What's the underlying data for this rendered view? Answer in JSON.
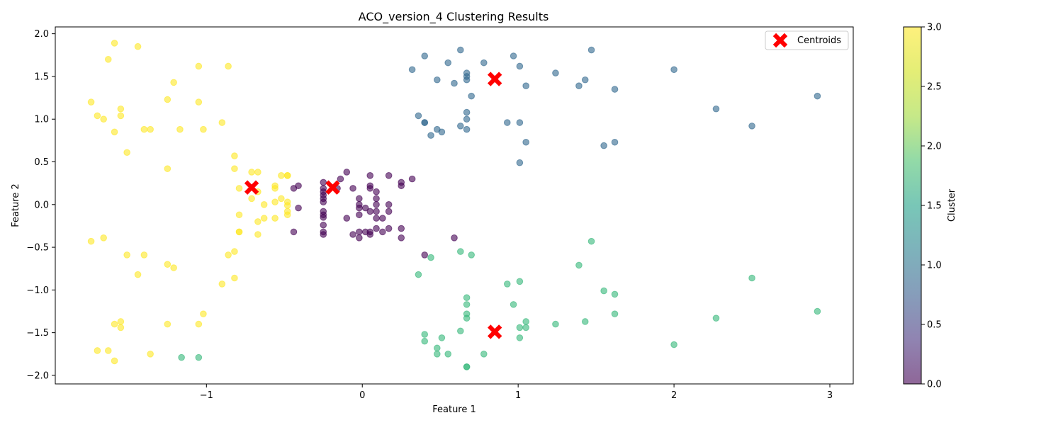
{
  "chart_data": {
    "type": "scatter",
    "title": "ACO_version_4 Clustering Results",
    "xlabel": "Feature 1",
    "ylabel": "Feature 2",
    "xlim": [
      -1.97,
      3.15
    ],
    "ylim": [
      -2.1,
      2.08
    ],
    "xticks": [
      -1,
      0,
      1,
      2,
      3
    ],
    "yticks": [
      -2.0,
      -1.5,
      -1.0,
      -0.5,
      0.0,
      0.5,
      1.0,
      1.5,
      2.0
    ],
    "grid": false,
    "legend": {
      "label": "Centroids",
      "location": "top-right"
    },
    "colorbar": {
      "label": "Cluster",
      "range": [
        0.0,
        3.0
      ],
      "ticks": [
        0.0,
        0.5,
        1.0,
        1.5,
        2.0,
        2.5,
        3.0
      ],
      "colormap": "viridis"
    },
    "centroid_color": "#ff0000",
    "series": [
      {
        "cluster": 0,
        "color": "#440154",
        "points": [
          [
            -0.25,
            0.26
          ],
          [
            -0.25,
            0.19
          ],
          [
            -0.25,
            0.15
          ],
          [
            -0.25,
            0.11
          ],
          [
            -0.25,
            0.07
          ],
          [
            -0.25,
            0.03
          ],
          [
            -0.25,
            -0.08
          ],
          [
            -0.25,
            -0.12
          ],
          [
            -0.25,
            -0.15
          ],
          [
            -0.25,
            -0.24
          ],
          [
            -0.25,
            -0.32
          ],
          [
            -0.25,
            -0.35
          ],
          [
            -0.1,
            0.38
          ],
          [
            -0.14,
            0.3
          ],
          [
            -0.16,
            0.19
          ],
          [
            -0.06,
            0.19
          ],
          [
            -0.41,
            0.22
          ],
          [
            -0.44,
            0.19
          ],
          [
            -0.41,
            -0.04
          ],
          [
            -0.44,
            -0.32
          ],
          [
            -0.1,
            -0.16
          ],
          [
            -0.06,
            -0.35
          ],
          [
            -0.02,
            -0.39
          ],
          [
            -0.02,
            -0.32
          ],
          [
            0.02,
            -0.32
          ],
          [
            -0.02,
            0.07
          ],
          [
            -0.02,
            0.0
          ],
          [
            -0.02,
            -0.04
          ],
          [
            -0.02,
            -0.12
          ],
          [
            0.02,
            -0.04
          ],
          [
            0.05,
            0.34
          ],
          [
            0.05,
            0.22
          ],
          [
            0.05,
            0.19
          ],
          [
            0.05,
            -0.08
          ],
          [
            0.05,
            -0.32
          ],
          [
            0.05,
            -0.35
          ],
          [
            0.09,
            0.15
          ],
          [
            0.09,
            0.07
          ],
          [
            0.09,
            0.0
          ],
          [
            0.09,
            -0.08
          ],
          [
            0.09,
            -0.16
          ],
          [
            0.09,
            -0.28
          ],
          [
            0.13,
            -0.16
          ],
          [
            0.13,
            -0.32
          ],
          [
            0.17,
            0.34
          ],
          [
            0.17,
            0.0
          ],
          [
            0.17,
            -0.08
          ],
          [
            0.17,
            -0.28
          ],
          [
            0.25,
            0.26
          ],
          [
            0.25,
            0.22
          ],
          [
            0.25,
            -0.28
          ],
          [
            0.25,
            -0.39
          ],
          [
            0.32,
            0.3
          ],
          [
            0.59,
            -0.39
          ],
          [
            0.4,
            -0.59
          ]
        ]
      },
      {
        "cluster": 1,
        "color": "#31688e",
        "points": [
          [
            0.32,
            1.58
          ],
          [
            0.4,
            1.74
          ],
          [
            0.48,
            1.46
          ],
          [
            0.55,
            1.66
          ],
          [
            0.59,
            1.42
          ],
          [
            0.63,
            1.81
          ],
          [
            0.67,
            1.54
          ],
          [
            0.67,
            1.5
          ],
          [
            0.67,
            1.46
          ],
          [
            0.7,
            1.27
          ],
          [
            0.78,
            1.66
          ],
          [
            0.97,
            1.74
          ],
          [
            1.01,
            1.62
          ],
          [
            1.05,
            1.39
          ],
          [
            1.24,
            1.54
          ],
          [
            1.39,
            1.39
          ],
          [
            1.43,
            1.46
          ],
          [
            1.47,
            1.81
          ],
          [
            1.62,
            1.35
          ],
          [
            2.0,
            1.58
          ],
          [
            2.92,
            1.27
          ],
          [
            2.27,
            1.12
          ],
          [
            2.5,
            0.92
          ],
          [
            0.36,
            1.04
          ],
          [
            0.4,
            0.96
          ],
          [
            0.4,
            0.96
          ],
          [
            0.44,
            0.81
          ],
          [
            0.48,
            0.88
          ],
          [
            0.51,
            0.85
          ],
          [
            0.63,
            0.92
          ],
          [
            0.67,
            0.88
          ],
          [
            0.67,
            1.0
          ],
          [
            0.67,
            1.08
          ],
          [
            0.93,
            0.96
          ],
          [
            1.01,
            0.96
          ],
          [
            1.05,
            0.73
          ],
          [
            1.01,
            0.49
          ],
          [
            1.55,
            0.69
          ],
          [
            1.62,
            0.73
          ]
        ]
      },
      {
        "cluster": 2,
        "color": "#35b779",
        "points": [
          [
            0.36,
            -0.82
          ],
          [
            0.44,
            -0.62
          ],
          [
            0.63,
            -0.55
          ],
          [
            0.7,
            -0.59
          ],
          [
            0.4,
            -1.52
          ],
          [
            0.4,
            -1.6
          ],
          [
            0.48,
            -1.68
          ],
          [
            0.48,
            -1.75
          ],
          [
            0.51,
            -1.56
          ],
          [
            0.55,
            -1.75
          ],
          [
            0.63,
            -1.48
          ],
          [
            0.67,
            -1.09
          ],
          [
            0.67,
            -1.17
          ],
          [
            0.67,
            -1.28
          ],
          [
            0.67,
            -1.33
          ],
          [
            0.67,
            -1.9
          ],
          [
            0.67,
            -1.9
          ],
          [
            0.78,
            -1.75
          ],
          [
            0.93,
            -0.93
          ],
          [
            0.97,
            -1.17
          ],
          [
            1.01,
            -0.9
          ],
          [
            1.01,
            -1.44
          ],
          [
            1.01,
            -1.56
          ],
          [
            1.05,
            -1.37
          ],
          [
            1.05,
            -1.44
          ],
          [
            1.24,
            -1.4
          ],
          [
            1.39,
            -0.71
          ],
          [
            1.43,
            -1.37
          ],
          [
            1.47,
            -0.43
          ],
          [
            1.55,
            -1.01
          ],
          [
            1.62,
            -1.05
          ],
          [
            1.62,
            -1.28
          ],
          [
            2.0,
            -1.64
          ],
          [
            2.27,
            -1.33
          ],
          [
            2.5,
            -0.86
          ],
          [
            2.92,
            -1.25
          ],
          [
            -1.16,
            -1.79
          ],
          [
            -1.05,
            -1.79
          ]
        ]
      },
      {
        "cluster": 3,
        "color": "#fde725",
        "points": [
          [
            -1.59,
            1.89
          ],
          [
            -1.44,
            1.85
          ],
          [
            -1.63,
            1.7
          ],
          [
            -1.05,
            1.62
          ],
          [
            -0.86,
            1.62
          ],
          [
            -1.21,
            1.43
          ],
          [
            -1.25,
            1.23
          ],
          [
            -1.74,
            1.2
          ],
          [
            -1.05,
            1.2
          ],
          [
            -1.55,
            1.12
          ],
          [
            -1.55,
            1.04
          ],
          [
            -1.7,
            1.04
          ],
          [
            -1.66,
            1.0
          ],
          [
            -0.9,
            0.96
          ],
          [
            -1.4,
            0.88
          ],
          [
            -1.36,
            0.88
          ],
          [
            -1.17,
            0.88
          ],
          [
            -1.02,
            0.88
          ],
          [
            -1.59,
            0.85
          ],
          [
            -1.51,
            0.61
          ],
          [
            -0.82,
            0.57
          ],
          [
            -0.82,
            0.42
          ],
          [
            -1.25,
            0.42
          ],
          [
            -0.71,
            0.38
          ],
          [
            -0.67,
            0.38
          ],
          [
            -0.52,
            0.34
          ],
          [
            -0.48,
            0.34
          ],
          [
            -0.48,
            0.34
          ],
          [
            -0.56,
            0.22
          ],
          [
            -0.56,
            0.19
          ],
          [
            -0.79,
            0.19
          ],
          [
            -0.67,
            0.15
          ],
          [
            -0.71,
            0.07
          ],
          [
            -0.52,
            0.07
          ],
          [
            -0.56,
            0.03
          ],
          [
            -0.48,
            0.03
          ],
          [
            -0.63,
            0.0
          ],
          [
            -0.48,
            -0.01
          ],
          [
            -0.48,
            -0.08
          ],
          [
            -0.48,
            -0.12
          ],
          [
            -0.79,
            -0.12
          ],
          [
            -0.63,
            -0.16
          ],
          [
            -0.56,
            -0.16
          ],
          [
            -0.67,
            -0.2
          ],
          [
            -0.79,
            -0.32
          ],
          [
            -0.79,
            -0.32
          ],
          [
            -0.67,
            -0.35
          ],
          [
            -0.82,
            -0.55
          ],
          [
            -0.86,
            -0.59
          ],
          [
            -1.74,
            -0.43
          ],
          [
            -1.66,
            -0.39
          ],
          [
            -1.51,
            -0.59
          ],
          [
            -1.4,
            -0.59
          ],
          [
            -1.25,
            -0.7
          ],
          [
            -1.21,
            -0.74
          ],
          [
            -1.44,
            -0.82
          ],
          [
            -0.82,
            -0.86
          ],
          [
            -0.9,
            -0.93
          ],
          [
            -1.02,
            -1.28
          ],
          [
            -1.59,
            -1.4
          ],
          [
            -1.55,
            -1.37
          ],
          [
            -1.55,
            -1.44
          ],
          [
            -1.25,
            -1.4
          ],
          [
            -1.05,
            -1.4
          ],
          [
            -1.7,
            -1.71
          ],
          [
            -1.63,
            -1.71
          ],
          [
            -1.36,
            -1.75
          ],
          [
            -1.59,
            -1.83
          ]
        ]
      }
    ],
    "centroids": [
      [
        -0.71,
        0.2
      ],
      [
        -0.19,
        0.2
      ],
      [
        0.85,
        1.47
      ],
      [
        0.85,
        -1.49
      ]
    ]
  }
}
